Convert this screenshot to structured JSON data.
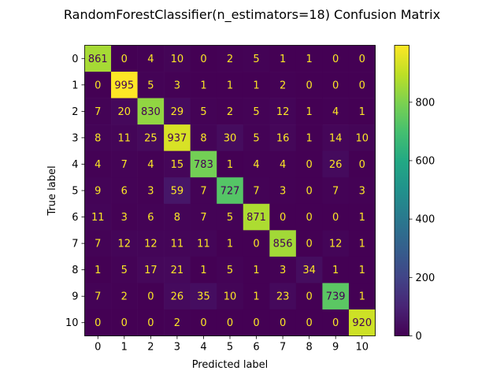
{
  "chart_data": {
    "type": "heatmap",
    "title": "RandomForestClassifier(n_estimators=18) Confusion Matrix",
    "xlabel": "Predicted label",
    "ylabel": "True label",
    "x_tick_labels": [
      "0",
      "1",
      "2",
      "3",
      "4",
      "5",
      "6",
      "7",
      "8",
      "9",
      "10"
    ],
    "y_tick_labels": [
      "0",
      "1",
      "2",
      "3",
      "4",
      "5",
      "6",
      "7",
      "8",
      "9",
      "10"
    ],
    "matrix": [
      [
        861,
        0,
        4,
        10,
        0,
        2,
        5,
        1,
        1,
        0,
        0
      ],
      [
        0,
        995,
        5,
        3,
        1,
        1,
        1,
        2,
        0,
        0,
        0
      ],
      [
        7,
        20,
        830,
        29,
        5,
        2,
        5,
        12,
        1,
        4,
        1
      ],
      [
        8,
        11,
        25,
        937,
        8,
        30,
        5,
        16,
        1,
        14,
        10
      ],
      [
        4,
        7,
        4,
        15,
        783,
        1,
        4,
        4,
        0,
        26,
        0
      ],
      [
        9,
        6,
        3,
        59,
        7,
        727,
        7,
        3,
        0,
        7,
        3
      ],
      [
        11,
        3,
        6,
        8,
        7,
        5,
        871,
        0,
        0,
        0,
        1
      ],
      [
        7,
        12,
        12,
        11,
        11,
        1,
        0,
        856,
        0,
        12,
        1
      ],
      [
        1,
        5,
        17,
        21,
        1,
        5,
        1,
        3,
        34,
        1,
        1
      ],
      [
        7,
        2,
        0,
        26,
        35,
        10,
        1,
        23,
        0,
        739,
        1
      ],
      [
        0,
        0,
        0,
        2,
        0,
        0,
        0,
        0,
        0,
        0,
        920
      ]
    ],
    "value_range": [
      0,
      995
    ],
    "colormap": "viridis",
    "colorbar_ticks": [
      0,
      200,
      400,
      600,
      800
    ],
    "colorbar": true,
    "grid": false
  }
}
